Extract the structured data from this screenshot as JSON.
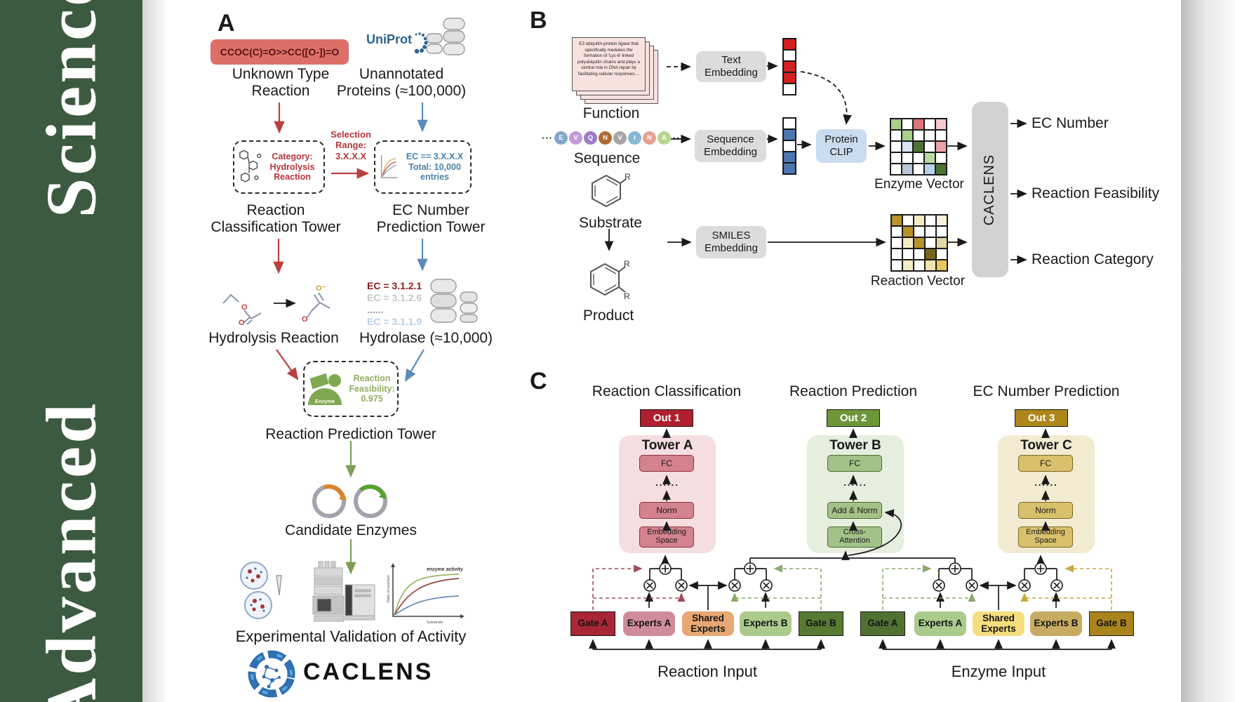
{
  "sidebar": {
    "word_bottom": "Advanced",
    "word_top": "Science",
    "bg": "#3c5a40"
  },
  "panel_a": {
    "label": "A",
    "smiles": "CCOC(C)=O>>CC([O-])=O",
    "smiles_bg": "#dd6f68",
    "smiles_color": "#571414",
    "unknown_type": "Unknown Type\nReaction",
    "uniprot": "UniProt",
    "uniprot_color": "#2b628f",
    "unannotated": "Unannotated\nProteins (≈100,000)",
    "category_box": "Category:\nHydrolysis\nReaction",
    "selection_range": "Selection\nRange:\n3.X.X.X",
    "ec_selection": "EC == 3.X.X.X\nTotal: 10,000\nentries",
    "red_text": "#b33636",
    "blue_text": "#4a80a8",
    "classification_tower": "Reaction\nClassification Tower",
    "ec_tower": "EC Number\nPrediction Tower",
    "ec_list": [
      {
        "text": "EC = 3.1.2.1",
        "color": "#8f1d1d"
      },
      {
        "text": "EC = 3.1.2.6",
        "color": "#c6c6c6"
      },
      {
        "text": "......",
        "color": "#9a9a9a"
      },
      {
        "text": "EC = 3.1.1.9",
        "color": "#b9cfe4"
      }
    ],
    "hydrolysis_label": "Hydrolysis Reaction",
    "hydrolase_label": "Hydrolase (≈10,000)",
    "enzyme_blob": "Enzyme",
    "feasibility": "Reaction\nFeasibility:\n0.975",
    "feasibility_color": "#93ad62",
    "prediction_tower": "Reaction Prediction Tower",
    "candidate": "Candidate Enzymes",
    "activity_plot": {
      "title": "enzyme activity",
      "ylabel": "Rate of reaction",
      "xlabel": "Substrate"
    },
    "validation": "Experimental Validation of Activity",
    "brand": "CACLENS"
  },
  "panel_b": {
    "label": "B",
    "function_text": "E3 ubiquitin-protein ligase that specifically mediates the formation of 'Lys-6'-linked polyubiquitin chains and plays a central role in DNA repair by facilitating cellular responses....",
    "function_label": "Function",
    "ellipsis": "···",
    "residues": [
      {
        "letter": "E",
        "color": "#84a7cc"
      },
      {
        "letter": "V",
        "color": "#c19bd9"
      },
      {
        "letter": "Q",
        "color": "#9d7bc8"
      },
      {
        "letter": "N",
        "color": "#b06a33"
      },
      {
        "letter": "V",
        "color": "#a6a6a6"
      },
      {
        "letter": "I",
        "color": "#86b7d4"
      },
      {
        "letter": "N",
        "color": "#e5a093"
      },
      {
        "letter": "A",
        "color": "#b5d68f"
      }
    ],
    "sequence_label": "Sequence",
    "substrate_label": "Substrate",
    "product_label": "Product",
    "r_group": "R",
    "text_embedding": "Text\nEmbedding",
    "sequence_embedding": "Sequence\nEmbedding",
    "smiles_embedding": "SMILES\nEmbedding",
    "protein_clip": "Protein\nCLIP",
    "protein_clip_bg": "#c9dcf0",
    "text_vector": [
      "#d42020",
      "#ffffff",
      "#d42020",
      "#d42020",
      "#ffffff"
    ],
    "sequence_vector": [
      "#ffffff",
      "#4d75b0",
      "#ffffff",
      "#4d75b0",
      "#4d75b0"
    ],
    "enzyme_vector_label": "Enzyme Vector",
    "reaction_vector_label": "Reaction Vector",
    "enzyme_grid": [
      [
        "#a9cf8b",
        "#ffffff",
        "#de7676",
        "#ffffff",
        "#f3c9ce"
      ],
      [
        "#ffffff",
        "#a9cf8b",
        "#ffffff",
        "#ffffff",
        "#ffffff"
      ],
      [
        "#ffffff",
        "#d8e6f4",
        "#4d7231",
        "#ffffff",
        "#eba4a9"
      ],
      [
        "#ffffff",
        "#ffffff",
        "#ffffff",
        "#b9d9a0",
        "#ffffff"
      ],
      [
        "#ffffff",
        "#b7c7d7",
        "#ffffff",
        "#b9d2ee",
        "#4d7231"
      ]
    ],
    "reaction_grid": [
      [
        "#b9912c",
        "#ffffff",
        "#f3ebc4",
        "#ffffff",
        "#f8f2da"
      ],
      [
        "#ffffff",
        "#b9912c",
        "#ffffff",
        "#ffffff",
        "#ffffff"
      ],
      [
        "#ffffff",
        "#f3ebc4",
        "#b9912c",
        "#ffffff",
        "#e4d7a4"
      ],
      [
        "#ffffff",
        "#ffffff",
        "#ffffff",
        "#75661c",
        "#ffffff"
      ],
      [
        "#ffffff",
        "#f3ebc4",
        "#ffffff",
        "#f3e4ae",
        "#e7c75e"
      ]
    ],
    "caclens": "CACLENS",
    "outputs": [
      "EC Number",
      "Reaction Feasibility",
      "Reaction Category"
    ]
  },
  "panel_c": {
    "label": "C",
    "towers": [
      {
        "title": "Reaction Classification",
        "out": "Out 1",
        "name": "Tower A",
        "blocks": [
          "FC",
          "......",
          "Norm",
          "Embedding\nSpace"
        ],
        "bg": "#f5dee2",
        "block_fill": "#d4828e",
        "block_border": "#8e3440",
        "out_fill": "#b01f2e"
      },
      {
        "title": "Reaction Prediction",
        "out": "Out 2",
        "name": "Tower B",
        "blocks": [
          "FC",
          "......",
          "Add & Norm",
          "Cross-\nAttention"
        ],
        "bg": "#e6eedd",
        "block_fill": "#a3c287",
        "block_border": "#4c6a33",
        "out_fill": "#6d9639"
      },
      {
        "title": "EC Number Prediction",
        "out": "Out 3",
        "name": "Tower C",
        "blocks": [
          "FC",
          "......",
          "Norm",
          "Embedding\nSpace"
        ],
        "bg": "#f2ebd2",
        "block_fill": "#d9c06c",
        "block_border": "#7a661f",
        "out_fill": "#ad871a"
      }
    ],
    "groups": [
      {
        "input": "Reaction Input",
        "boxes": [
          {
            "label": "Gate A",
            "fill": "#a92637"
          },
          {
            "label": "Experts A",
            "fill": "#cf8d99"
          },
          {
            "label": "Shared\nExperts",
            "fill": "#e8a873"
          },
          {
            "label": "Experts B",
            "fill": "#abcb8d"
          },
          {
            "label": "Gate B",
            "fill": "#557a30"
          }
        ]
      },
      {
        "input": "Enzyme Input",
        "boxes": [
          {
            "label": "Gate A",
            "fill": "#4f7233"
          },
          {
            "label": "Experts A",
            "fill": "#a9cb8c"
          },
          {
            "label": "Shared\nExperts",
            "fill": "#f6dd7e"
          },
          {
            "label": "Experts B",
            "fill": "#c8ab62"
          },
          {
            "label": "Gate B",
            "fill": "#a9841c"
          }
        ]
      }
    ]
  }
}
